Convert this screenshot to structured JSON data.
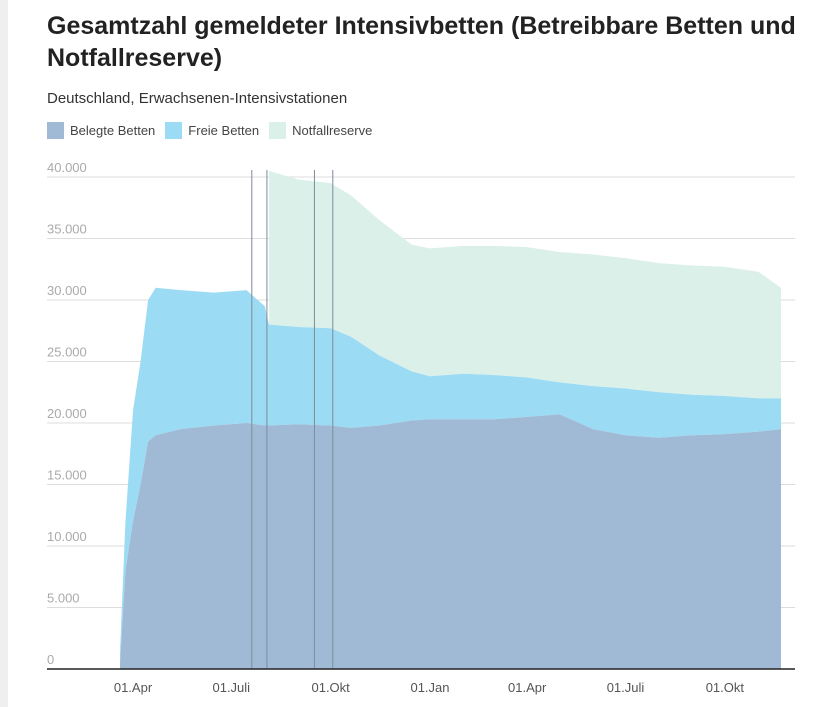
{
  "chart_data": {
    "type": "area",
    "title": "Gesamtzahl gemeldeter Intensivbetten (Betreibbare Betten und Notfallreserve)",
    "subtitle": "Deutschland, Erwachsenen-Intensivstationen",
    "xlabel": "",
    "ylabel": "",
    "ylim": [
      0,
      40000
    ],
    "y_ticks": [
      {
        "value": 0,
        "label": "0"
      },
      {
        "value": 5000,
        "label": "5.000"
      },
      {
        "value": 10000,
        "label": "10.000"
      },
      {
        "value": 15000,
        "label": "15.000"
      },
      {
        "value": 20000,
        "label": "20.000"
      },
      {
        "value": 25000,
        "label": "25.000"
      },
      {
        "value": 30000,
        "label": "30.000"
      },
      {
        "value": 35000,
        "label": "35.000"
      },
      {
        "value": 40000,
        "label": "40.000"
      }
    ],
    "x_ticks": [
      {
        "date": "2020-04-01",
        "label": "01.Apr"
      },
      {
        "date": "2020-07-01",
        "label": "01.Juli"
      },
      {
        "date": "2020-10-01",
        "label": "01.Okt"
      },
      {
        "date": "2021-01-01",
        "label": "01.Jan"
      },
      {
        "date": "2021-04-01",
        "label": "01.Apr"
      },
      {
        "date": "2021-07-01",
        "label": "01.Juli"
      },
      {
        "date": "2021-10-01",
        "label": "01.Okt"
      }
    ],
    "grid": true,
    "legend_placement": "top-left",
    "stacked": true,
    "series": [
      {
        "name": "Belegte Betten",
        "color": "#a0bad5"
      },
      {
        "name": "Freie Betten",
        "color": "#9cdbf4"
      },
      {
        "name": "Notfallreserve",
        "color": "#dcf0ea"
      }
    ],
    "annotation_lines": [
      "2020-07-20",
      "2020-08-03",
      "2020-09-16",
      "2020-10-03"
    ],
    "points": [
      {
        "date": "2020-03-20",
        "belegt": 500,
        "frei": 1000,
        "reserve": null
      },
      {
        "date": "2020-03-25",
        "belegt": 8000,
        "frei": 4000,
        "reserve": null
      },
      {
        "date": "2020-04-01",
        "belegt": 12000,
        "frei": 9000,
        "reserve": null
      },
      {
        "date": "2020-04-08",
        "belegt": 15000,
        "frei": 10000,
        "reserve": null
      },
      {
        "date": "2020-04-15",
        "belegt": 18500,
        "frei": 11500,
        "reserve": null
      },
      {
        "date": "2020-04-22",
        "belegt": 19000,
        "frei": 12000,
        "reserve": null
      },
      {
        "date": "2020-05-15",
        "belegt": 19500,
        "frei": 11300,
        "reserve": null
      },
      {
        "date": "2020-06-15",
        "belegt": 19800,
        "frei": 10800,
        "reserve": null
      },
      {
        "date": "2020-07-15",
        "belegt": 20000,
        "frei": 10800,
        "reserve": null
      },
      {
        "date": "2020-08-01",
        "belegt": 19800,
        "frei": 9700,
        "reserve": null
      },
      {
        "date": "2020-08-05",
        "belegt": 19800,
        "frei": 8200,
        "reserve": 12500
      },
      {
        "date": "2020-09-01",
        "belegt": 19900,
        "frei": 7900,
        "reserve": 12000
      },
      {
        "date": "2020-10-01",
        "belegt": 19800,
        "frei": 7900,
        "reserve": 11800
      },
      {
        "date": "2020-10-20",
        "belegt": 19600,
        "frei": 7400,
        "reserve": 11500
      },
      {
        "date": "2020-11-15",
        "belegt": 19800,
        "frei": 5700,
        "reserve": 11000
      },
      {
        "date": "2020-12-15",
        "belegt": 20200,
        "frei": 4000,
        "reserve": 10300
      },
      {
        "date": "2021-01-01",
        "belegt": 20300,
        "frei": 3500,
        "reserve": 10400
      },
      {
        "date": "2021-02-01",
        "belegt": 20300,
        "frei": 3700,
        "reserve": 10400
      },
      {
        "date": "2021-03-01",
        "belegt": 20300,
        "frei": 3600,
        "reserve": 10500
      },
      {
        "date": "2021-04-01",
        "belegt": 20500,
        "frei": 3200,
        "reserve": 10600
      },
      {
        "date": "2021-05-01",
        "belegt": 20700,
        "frei": 2600,
        "reserve": 10600
      },
      {
        "date": "2021-06-01",
        "belegt": 19500,
        "frei": 3500,
        "reserve": 10700
      },
      {
        "date": "2021-07-01",
        "belegt": 19000,
        "frei": 3800,
        "reserve": 10600
      },
      {
        "date": "2021-08-01",
        "belegt": 18800,
        "frei": 3700,
        "reserve": 10500
      },
      {
        "date": "2021-09-01",
        "belegt": 19000,
        "frei": 3300,
        "reserve": 10500
      },
      {
        "date": "2021-10-01",
        "belegt": 19100,
        "frei": 3100,
        "reserve": 10500
      },
      {
        "date": "2021-11-01",
        "belegt": 19300,
        "frei": 2700,
        "reserve": 10300
      },
      {
        "date": "2021-11-22",
        "belegt": 19500,
        "frei": 2500,
        "reserve": 9000
      }
    ]
  }
}
